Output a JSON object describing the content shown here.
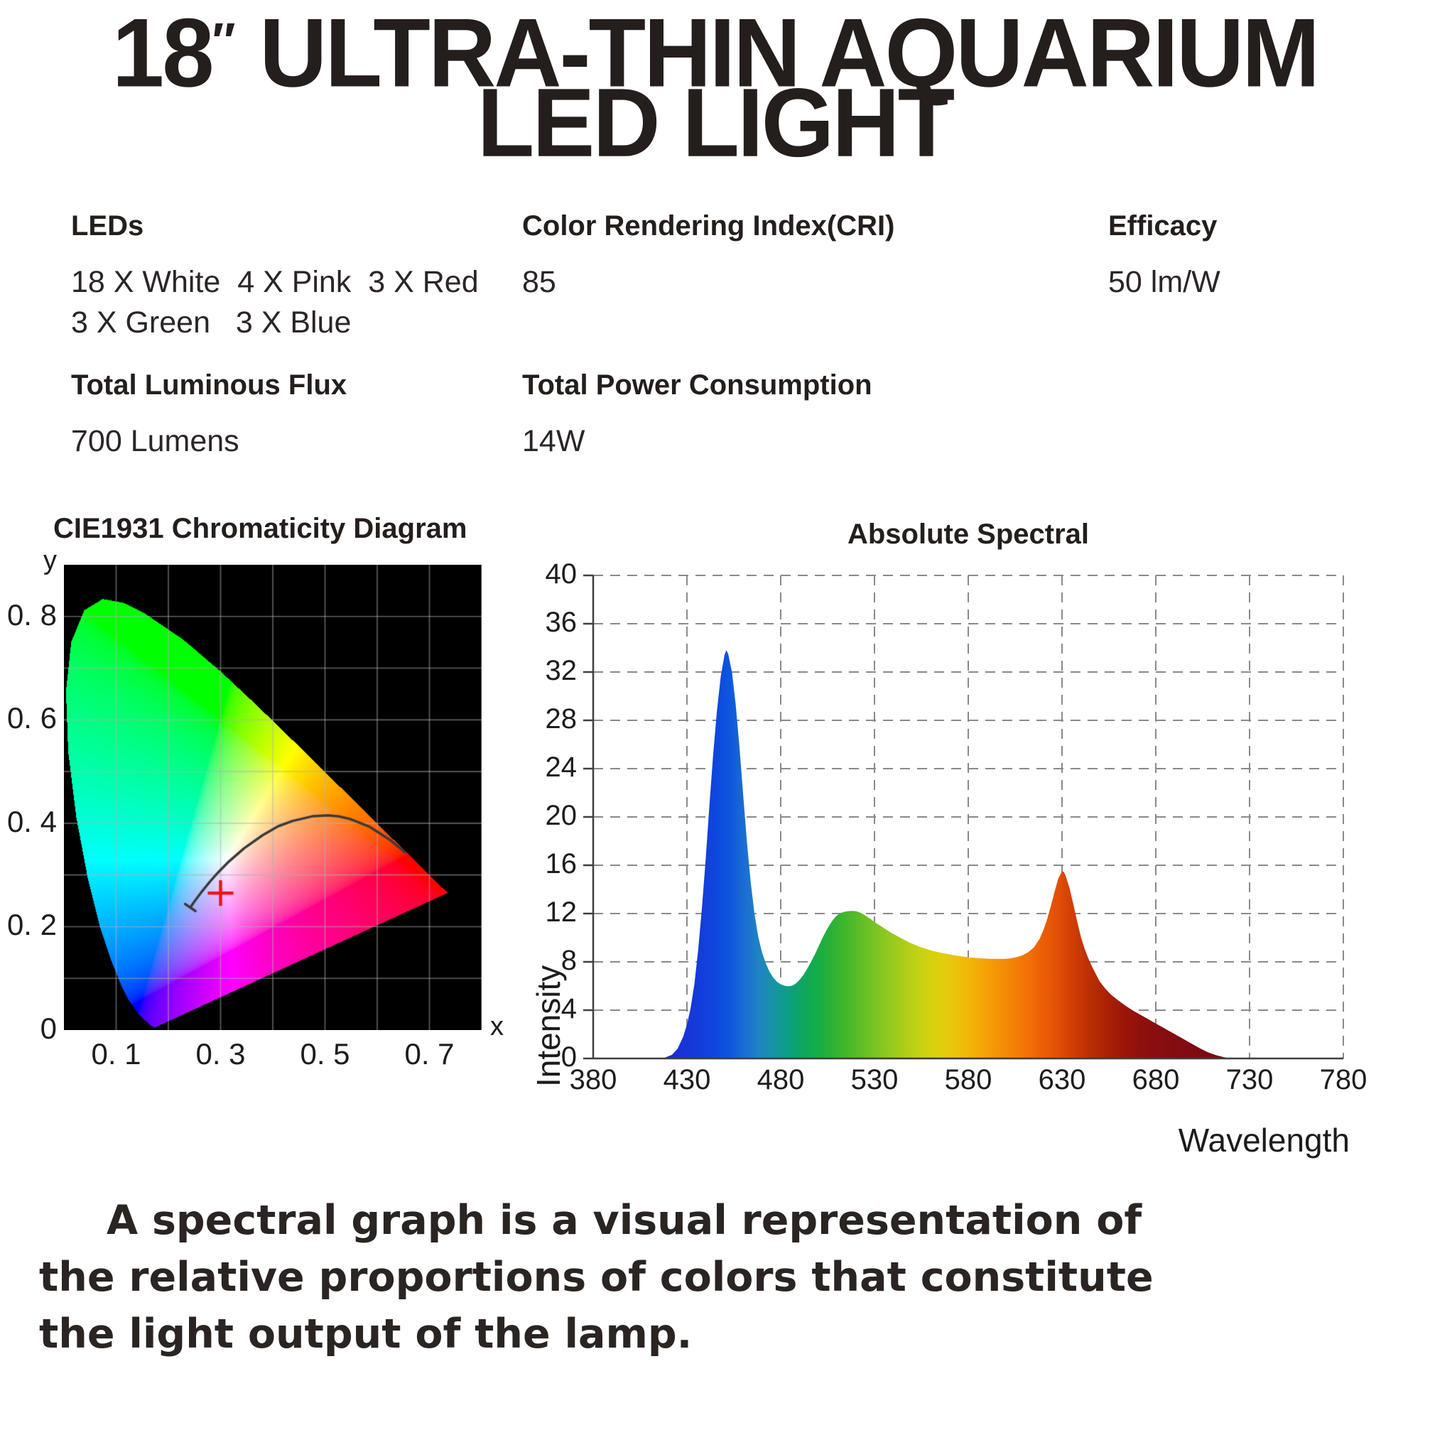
{
  "title": {
    "size_number": "18",
    "inch_mark": "″",
    "line1_rest": " ULTRA-THIN AQUARIUM",
    "line2": "LED LIGHT"
  },
  "specs": {
    "leds": {
      "label": "LEDs",
      "line1": "18 X White  4 X Pink  3 X Red",
      "line2": "3 X Green   3 X Blue"
    },
    "cri": {
      "label": "Color Rendering Index(CRI)",
      "value": "85"
    },
    "efficacy": {
      "label": "Efficacy",
      "value": "50 lm/W"
    },
    "flux": {
      "label": "Total Luminous Flux",
      "value": "700 Lumens"
    },
    "power": {
      "label": "Total Power Consumption",
      "value": "14W"
    }
  },
  "paragraph": [
    "A spectral graph is a visual representation of",
    "the relative proportions of colors that constitute",
    "the light output of the lamp."
  ],
  "chart_data": [
    {
      "type": "chromaticity_diagram",
      "title": "CIE1931 Chromaticity Diagram",
      "xlabel": "x",
      "ylabel": "y",
      "xlim": [
        0,
        0.8
      ],
      "ylim": [
        0,
        0.9
      ],
      "grid_step": 0.1,
      "grid": true,
      "background": "#000000",
      "x_ticks": [
        {
          "v": 0.1,
          "label": "0. 1"
        },
        {
          "v": 0.3,
          "label": "0. 3"
        },
        {
          "v": 0.5,
          "label": "0. 5"
        },
        {
          "v": 0.7,
          "label": "0. 7"
        }
      ],
      "y_ticks": [
        {
          "v": 0.8,
          "label": "0. 8"
        },
        {
          "v": 0.6,
          "label": "0. 6"
        },
        {
          "v": 0.4,
          "label": "0. 4"
        },
        {
          "v": 0.2,
          "label": "0. 2"
        },
        {
          "v": 0,
          "label": "0"
        }
      ],
      "spectral_locus": [
        [
          0.1741,
          0.005
        ],
        [
          0.174,
          0.005
        ],
        [
          0.1738,
          0.0049
        ],
        [
          0.1733,
          0.0048
        ],
        [
          0.1726,
          0.0048
        ],
        [
          0.1714,
          0.0051
        ],
        [
          0.1689,
          0.0069
        ],
        [
          0.1644,
          0.0109
        ],
        [
          0.1566,
          0.0177
        ],
        [
          0.144,
          0.0297
        ],
        [
          0.1241,
          0.0578
        ],
        [
          0.1096,
          0.0868
        ],
        [
          0.0913,
          0.1327
        ],
        [
          0.0687,
          0.2007
        ],
        [
          0.0454,
          0.295
        ],
        [
          0.0235,
          0.4127
        ],
        [
          0.0082,
          0.5384
        ],
        [
          0.0039,
          0.6548
        ],
        [
          0.0139,
          0.7502
        ],
        [
          0.0389,
          0.812
        ],
        [
          0.0743,
          0.8338
        ],
        [
          0.1142,
          0.8262
        ],
        [
          0.1547,
          0.8059
        ],
        [
          0.2296,
          0.7543
        ],
        [
          0.3016,
          0.6923
        ],
        [
          0.3731,
          0.6245
        ],
        [
          0.4441,
          0.5547
        ],
        [
          0.5125,
          0.4866
        ],
        [
          0.5752,
          0.4242
        ],
        [
          0.627,
          0.3725
        ],
        [
          0.6658,
          0.334
        ],
        [
          0.6915,
          0.3083
        ],
        [
          0.7079,
          0.292
        ],
        [
          0.719,
          0.2809
        ],
        [
          0.726,
          0.274
        ],
        [
          0.73,
          0.27
        ],
        [
          0.7334,
          0.2666
        ],
        [
          0.7347,
          0.2653
        ]
      ],
      "planckian_locus": [
        [
          0.6528,
          0.3444
        ],
        [
          0.6249,
          0.3676
        ],
        [
          0.5857,
          0.3931
        ],
        [
          0.548,
          0.4082
        ],
        [
          0.5267,
          0.4133
        ],
        [
          0.5056,
          0.4152
        ],
        [
          0.477,
          0.4137
        ],
        [
          0.4369,
          0.4041
        ],
        [
          0.41,
          0.394
        ],
        [
          0.3805,
          0.3768
        ],
        [
          0.3451,
          0.3516
        ],
        [
          0.3135,
          0.3237
        ],
        [
          0.2952,
          0.3048
        ],
        [
          0.2807,
          0.2884
        ],
        [
          0.2637,
          0.2673
        ],
        [
          0.2565,
          0.2577
        ],
        [
          0.249,
          0.2472
        ],
        [
          0.242,
          0.237
        ]
      ],
      "white_point_marker": {
        "x": 0.3,
        "y": 0.265,
        "color": "#ee1414"
      },
      "gridline_color": "#b0b0b0",
      "locus_curve_color": "#3a3a3a"
    },
    {
      "type": "area",
      "title": "Absolute Spectral",
      "xlabel": "Wavelength",
      "ylabel": "Intensity",
      "xlim": [
        380,
        780
      ],
      "ylim": [
        0,
        40
      ],
      "x_ticks": [
        380,
        430,
        480,
        530,
        580,
        630,
        680,
        730,
        780
      ],
      "y_ticks": [
        0,
        4,
        8,
        12,
        16,
        20,
        24,
        28,
        32,
        36,
        40
      ],
      "grid": true,
      "grid_style": "dashed",
      "grid_color": "#8a8a8a",
      "legend": false,
      "points": [
        [
          380,
          0
        ],
        [
          410,
          0
        ],
        [
          418,
          0.05
        ],
        [
          422,
          0.3
        ],
        [
          425,
          0.8
        ],
        [
          428,
          1.8
        ],
        [
          430,
          2.8
        ],
        [
          432,
          4.2
        ],
        [
          434,
          6.2
        ],
        [
          436,
          9.0
        ],
        [
          438,
          12.5
        ],
        [
          440,
          16.5
        ],
        [
          442,
          21.0
        ],
        [
          444,
          25.2
        ],
        [
          446,
          28.8
        ],
        [
          448,
          31.6
        ],
        [
          450,
          33.4
        ],
        [
          451,
          33.8
        ],
        [
          452,
          33.5
        ],
        [
          454,
          32.0
        ],
        [
          456,
          29.3
        ],
        [
          458,
          25.8
        ],
        [
          460,
          21.8
        ],
        [
          462,
          17.9
        ],
        [
          464,
          14.6
        ],
        [
          466,
          12.0
        ],
        [
          468,
          10.1
        ],
        [
          470,
          8.8
        ],
        [
          472,
          7.9
        ],
        [
          474,
          7.2
        ],
        [
          476,
          6.7
        ],
        [
          478,
          6.35
        ],
        [
          480,
          6.15
        ],
        [
          482,
          6.02
        ],
        [
          484,
          5.97
        ],
        [
          486,
          6.02
        ],
        [
          488,
          6.2
        ],
        [
          490,
          6.5
        ],
        [
          492,
          6.9
        ],
        [
          494,
          7.4
        ],
        [
          496,
          7.95
        ],
        [
          498,
          8.55
        ],
        [
          500,
          9.2
        ],
        [
          502,
          9.9
        ],
        [
          504,
          10.5
        ],
        [
          506,
          11.05
        ],
        [
          508,
          11.5
        ],
        [
          510,
          11.85
        ],
        [
          512,
          12.05
        ],
        [
          514,
          12.15
        ],
        [
          516,
          12.2
        ],
        [
          518,
          12.22
        ],
        [
          520,
          12.2
        ],
        [
          522,
          12.1
        ],
        [
          524,
          11.95
        ],
        [
          526,
          11.75
        ],
        [
          528,
          11.55
        ],
        [
          530,
          11.3
        ],
        [
          533,
          11.0
        ],
        [
          536,
          10.7
        ],
        [
          539,
          10.4
        ],
        [
          542,
          10.15
        ],
        [
          545,
          9.9
        ],
        [
          548,
          9.65
        ],
        [
          551,
          9.45
        ],
        [
          554,
          9.25
        ],
        [
          557,
          9.1
        ],
        [
          560,
          8.95
        ],
        [
          564,
          8.8
        ],
        [
          568,
          8.68
        ],
        [
          572,
          8.56
        ],
        [
          576,
          8.46
        ],
        [
          580,
          8.38
        ],
        [
          584,
          8.32
        ],
        [
          588,
          8.28
        ],
        [
          592,
          8.25
        ],
        [
          596,
          8.24
        ],
        [
          600,
          8.25
        ],
        [
          603,
          8.3
        ],
        [
          606,
          8.4
        ],
        [
          609,
          8.55
        ],
        [
          612,
          8.8
        ],
        [
          615,
          9.2
        ],
        [
          618,
          9.9
        ],
        [
          620,
          10.6
        ],
        [
          622,
          11.5
        ],
        [
          624,
          12.6
        ],
        [
          626,
          13.8
        ],
        [
          628,
          14.9
        ],
        [
          630,
          15.5
        ],
        [
          631,
          15.45
        ],
        [
          632,
          15.1
        ],
        [
          634,
          14.1
        ],
        [
          636,
          12.8
        ],
        [
          638,
          11.4
        ],
        [
          640,
          10.1
        ],
        [
          642,
          9.1
        ],
        [
          644,
          8.3
        ],
        [
          646,
          7.6
        ],
        [
          648,
          7.0
        ],
        [
          650,
          6.4
        ],
        [
          653,
          5.8
        ],
        [
          656,
          5.3
        ],
        [
          660,
          4.8
        ],
        [
          664,
          4.35
        ],
        [
          668,
          3.95
        ],
        [
          672,
          3.6
        ],
        [
          676,
          3.25
        ],
        [
          680,
          2.9
        ],
        [
          684,
          2.55
        ],
        [
          688,
          2.2
        ],
        [
          692,
          1.85
        ],
        [
          696,
          1.5
        ],
        [
          700,
          1.15
        ],
        [
          704,
          0.8
        ],
        [
          708,
          0.5
        ],
        [
          712,
          0.28
        ],
        [
          716,
          0.12
        ],
        [
          719,
          0.03
        ],
        [
          722,
          0
        ],
        [
          780,
          0
        ]
      ],
      "gradient_stops": [
        {
          "wl": 420,
          "color": "#1c2ad2"
        },
        {
          "wl": 445,
          "color": "#0f46dd"
        },
        {
          "wl": 452,
          "color": "#0d54de"
        },
        {
          "wl": 460,
          "color": "#1a6bd4"
        },
        {
          "wl": 468,
          "color": "#1f83c4"
        },
        {
          "wl": 476,
          "color": "#1694a6"
        },
        {
          "wl": 484,
          "color": "#0c9f82"
        },
        {
          "wl": 492,
          "color": "#0ea75e"
        },
        {
          "wl": 500,
          "color": "#17ad46"
        },
        {
          "wl": 508,
          "color": "#2db233"
        },
        {
          "wl": 516,
          "color": "#47b82a"
        },
        {
          "wl": 524,
          "color": "#63bf26"
        },
        {
          "wl": 532,
          "color": "#7fc522"
        },
        {
          "wl": 540,
          "color": "#9aca1e"
        },
        {
          "wl": 548,
          "color": "#b3cf18"
        },
        {
          "wl": 556,
          "color": "#cbd211"
        },
        {
          "wl": 564,
          "color": "#ddd00c"
        },
        {
          "wl": 572,
          "color": "#eac60a"
        },
        {
          "wl": 580,
          "color": "#f2b609"
        },
        {
          "wl": 588,
          "color": "#f5a508"
        },
        {
          "wl": 596,
          "color": "#f59207"
        },
        {
          "wl": 604,
          "color": "#f48107"
        },
        {
          "wl": 612,
          "color": "#f17007"
        },
        {
          "wl": 620,
          "color": "#ea5e06"
        },
        {
          "wl": 628,
          "color": "#e04e05"
        },
        {
          "wl": 634,
          "color": "#d44105"
        },
        {
          "wl": 640,
          "color": "#c63605"
        },
        {
          "wl": 648,
          "color": "#b52a05"
        },
        {
          "wl": 656,
          "color": "#a61e06"
        },
        {
          "wl": 664,
          "color": "#9a1509"
        },
        {
          "wl": 672,
          "color": "#90100c"
        },
        {
          "wl": 680,
          "color": "#890e0f"
        },
        {
          "wl": 692,
          "color": "#810c11"
        },
        {
          "wl": 706,
          "color": "#7c0b11"
        },
        {
          "wl": 722,
          "color": "#7a0a10"
        }
      ]
    }
  ]
}
